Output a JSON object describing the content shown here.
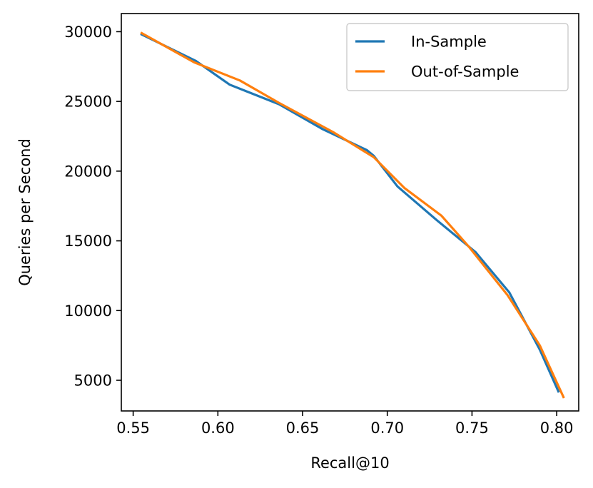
{
  "chart_data": {
    "type": "line",
    "title": "",
    "xlabel": "Recall@10",
    "ylabel": "Queries per Second",
    "xlim": [
      0.543,
      0.813
    ],
    "ylim": [
      2800,
      31300
    ],
    "xticks": [
      0.55,
      0.6,
      0.65,
      0.7,
      0.75,
      0.8
    ],
    "xtick_labels": [
      "0.55",
      "0.60",
      "0.65",
      "0.70",
      "0.75",
      "0.80"
    ],
    "yticks": [
      5000,
      10000,
      15000,
      20000,
      25000,
      30000
    ],
    "ytick_labels": [
      "5000",
      "10000",
      "15000",
      "20000",
      "25000",
      "30000"
    ],
    "grid": false,
    "legend_position": "top-right",
    "series": [
      {
        "name": "In-Sample",
        "color": "#1f77b4",
        "x": [
          0.555,
          0.587,
          0.607,
          0.636,
          0.662,
          0.688,
          0.692,
          0.706,
          0.729,
          0.752,
          0.772,
          0.79,
          0.801
        ],
        "y": [
          29800,
          27900,
          26200,
          24800,
          23000,
          21500,
          21100,
          18900,
          16500,
          14200,
          11300,
          7200,
          4200
        ]
      },
      {
        "name": "Out-of-Sample",
        "color": "#ff7f0e",
        "x": [
          0.555,
          0.586,
          0.613,
          0.636,
          0.668,
          0.692,
          0.71,
          0.732,
          0.748,
          0.771,
          0.79,
          0.804
        ],
        "y": [
          29900,
          27800,
          26500,
          24900,
          22800,
          21000,
          18800,
          16800,
          14600,
          11100,
          7500,
          3800
        ]
      }
    ]
  }
}
